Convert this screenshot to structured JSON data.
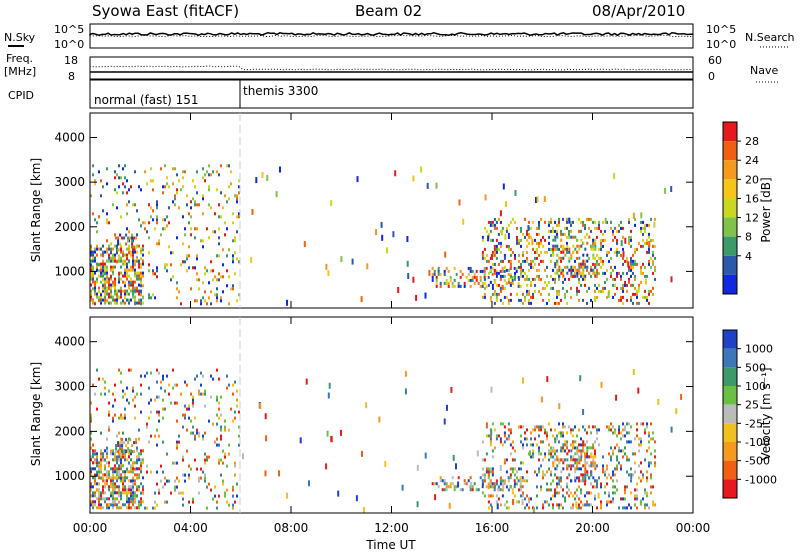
{
  "header": {
    "title": "Syowa East (fitACF)",
    "beam": "Beam 02",
    "date": "08/Apr/2010"
  },
  "strips": {
    "nsky_label": "N.Sky",
    "nsearch_label": "N.Search",
    "noise_ticks_top": "10^5",
    "noise_ticks_bottom": "10^0",
    "freq_label_1": "Freq.",
    "freq_label_2": "[MHz]",
    "freq_ticks": [
      "18",
      "8"
    ],
    "nave_label": "Nave",
    "nave_ticks": [
      "60",
      "0"
    ],
    "cpid_label": "CPID",
    "cpid_modes": [
      {
        "name": "normal (fast) 151",
        "start_hour": 0,
        "end_hour": 6
      },
      {
        "name": "themis 3300",
        "start_hour": 6,
        "end_hour": 24
      }
    ]
  },
  "power_colorbar": {
    "label": "Power [dB]",
    "ticks": [
      "28",
      "24",
      "20",
      "16",
      "12",
      "8",
      "4"
    ],
    "colors": [
      "#e41a1c",
      "#f06010",
      "#f59a1e",
      "#f5c618",
      "#c8d820",
      "#7fc34a",
      "#3c9a6a",
      "#2a5aa8",
      "#1028e0"
    ]
  },
  "velocity_colorbar": {
    "label": "Velocity [m s⁻¹]",
    "ticks": [
      "1000",
      "500",
      "100",
      "25",
      "-25",
      "-100",
      "-500",
      "-1000"
    ],
    "colors": [
      "#2040c8",
      "#3a78b8",
      "#3c9a6a",
      "#6ac040",
      "#bbbbbb",
      "#f0c020",
      "#f59a1e",
      "#f06010",
      "#e41a1c"
    ]
  },
  "chart_data": [
    {
      "type": "heatmap",
      "panel": "power",
      "ylabel": "Slant Range [km]",
      "xlabel": "Time UT",
      "xlim": [
        0,
        24
      ],
      "ylim": [
        180,
        4550
      ],
      "xticks": [
        "00:00",
        "04:00",
        "08:00",
        "12:00",
        "16:00",
        "20:00",
        "00:00"
      ],
      "yticks": [
        1000,
        2000,
        3000,
        4000
      ],
      "scatter_regions": [
        {
          "t0": 0.0,
          "t1": 2.2,
          "r0": 200,
          "r1": 1600,
          "density": 0.55
        },
        {
          "t0": 0.0,
          "t1": 6.0,
          "r0": 200,
          "r1": 3400,
          "density": 0.1
        },
        {
          "t0": 1.0,
          "t1": 1.9,
          "r0": 1400,
          "r1": 1850,
          "density": 0.35
        },
        {
          "t0": 13.6,
          "t1": 17.4,
          "r0": 600,
          "r1": 1100,
          "density": 0.3
        },
        {
          "t0": 15.6,
          "t1": 22.6,
          "r0": 200,
          "r1": 2200,
          "density": 0.25
        },
        {
          "t0": 18.4,
          "t1": 20.2,
          "r0": 800,
          "r1": 1800,
          "density": 0.35
        }
      ]
    },
    {
      "type": "heatmap",
      "panel": "velocity",
      "ylabel": "Slant Range [km]",
      "xlabel": "Time UT",
      "xlim": [
        0,
        24
      ],
      "ylim": [
        180,
        4550
      ],
      "xticks": [
        "00:00",
        "04:00",
        "08:00",
        "12:00",
        "16:00",
        "20:00",
        "00:00"
      ],
      "yticks": [
        1000,
        2000,
        3000,
        4000
      ],
      "scatter_regions": [
        {
          "t0": 0.0,
          "t1": 2.2,
          "r0": 200,
          "r1": 1600,
          "density": 0.55
        },
        {
          "t0": 0.0,
          "t1": 6.0,
          "r0": 200,
          "r1": 3400,
          "density": 0.1
        },
        {
          "t0": 1.0,
          "t1": 1.9,
          "r0": 1500,
          "r1": 1850,
          "density": 0.4
        },
        {
          "t0": 13.6,
          "t1": 17.4,
          "r0": 600,
          "r1": 1000,
          "density": 0.3
        },
        {
          "t0": 15.6,
          "t1": 22.6,
          "r0": 200,
          "r1": 2200,
          "density": 0.22
        },
        {
          "t0": 18.4,
          "t1": 20.2,
          "r0": 800,
          "r1": 1800,
          "density": 0.35
        }
      ]
    }
  ]
}
